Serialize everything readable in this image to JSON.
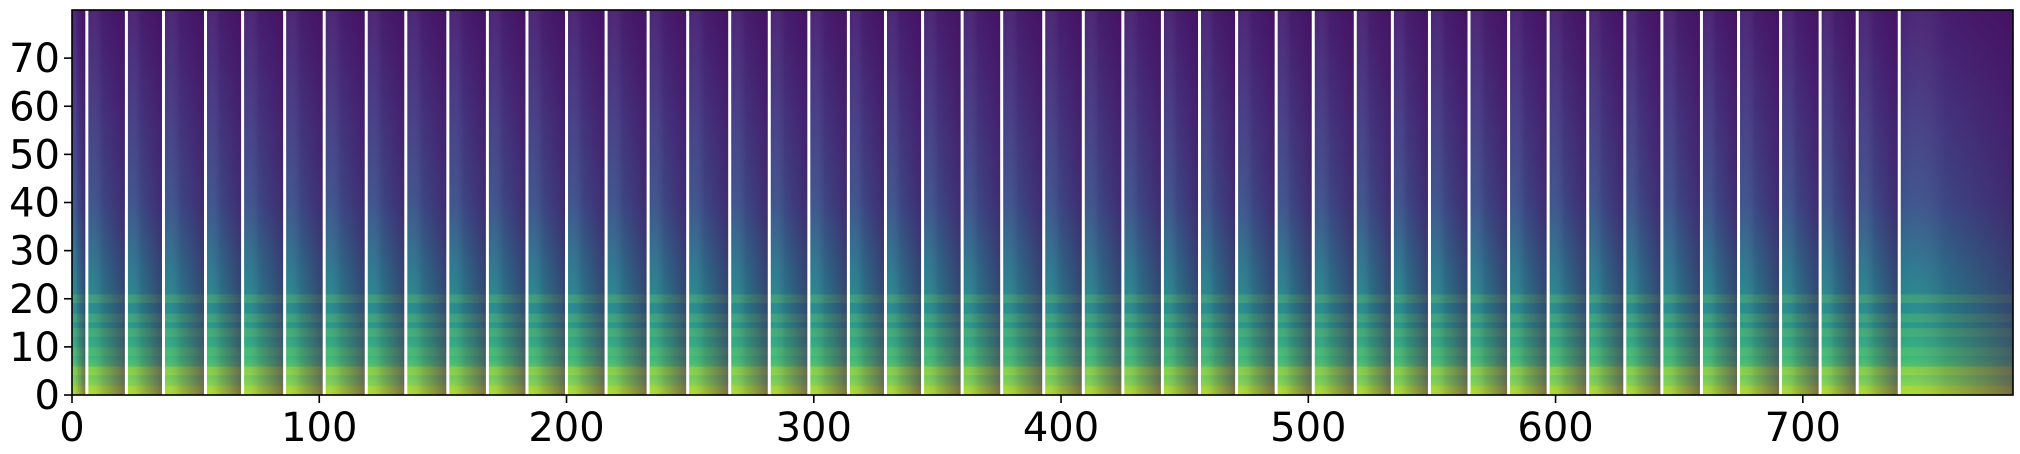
{
  "chart_data": {
    "type": "heatmap",
    "title": "",
    "xlabel": "",
    "ylabel": "",
    "xlim": [
      0,
      785
    ],
    "ylim": [
      0,
      80
    ],
    "x_ticks": [
      0,
      100,
      200,
      300,
      400,
      500,
      600,
      700
    ],
    "y_ticks": [
      0,
      10,
      20,
      30,
      40,
      50,
      60,
      70
    ],
    "x_tick_labels": [
      "0",
      "100",
      "200",
      "300",
      "400",
      "500",
      "600",
      "700"
    ],
    "y_tick_labels": [
      "0",
      "10",
      "20",
      "30",
      "40",
      "50",
      "60",
      "70"
    ],
    "colormap": "viridis",
    "grid": false,
    "legend": "none",
    "segment_boundaries": [
      6,
      22,
      37,
      54,
      69,
      86,
      102,
      119,
      135,
      152,
      168,
      184,
      200,
      216,
      233,
      249,
      266,
      282,
      298,
      314,
      329,
      344,
      360,
      376,
      393,
      409,
      425,
      441,
      456,
      471,
      487,
      502,
      519,
      534,
      549,
      565,
      581,
      597,
      613,
      628,
      643,
      659,
      674,
      691,
      707,
      722,
      739
    ],
    "bright_bands": [
      1,
      5,
      9,
      13,
      16,
      20
    ]
  }
}
